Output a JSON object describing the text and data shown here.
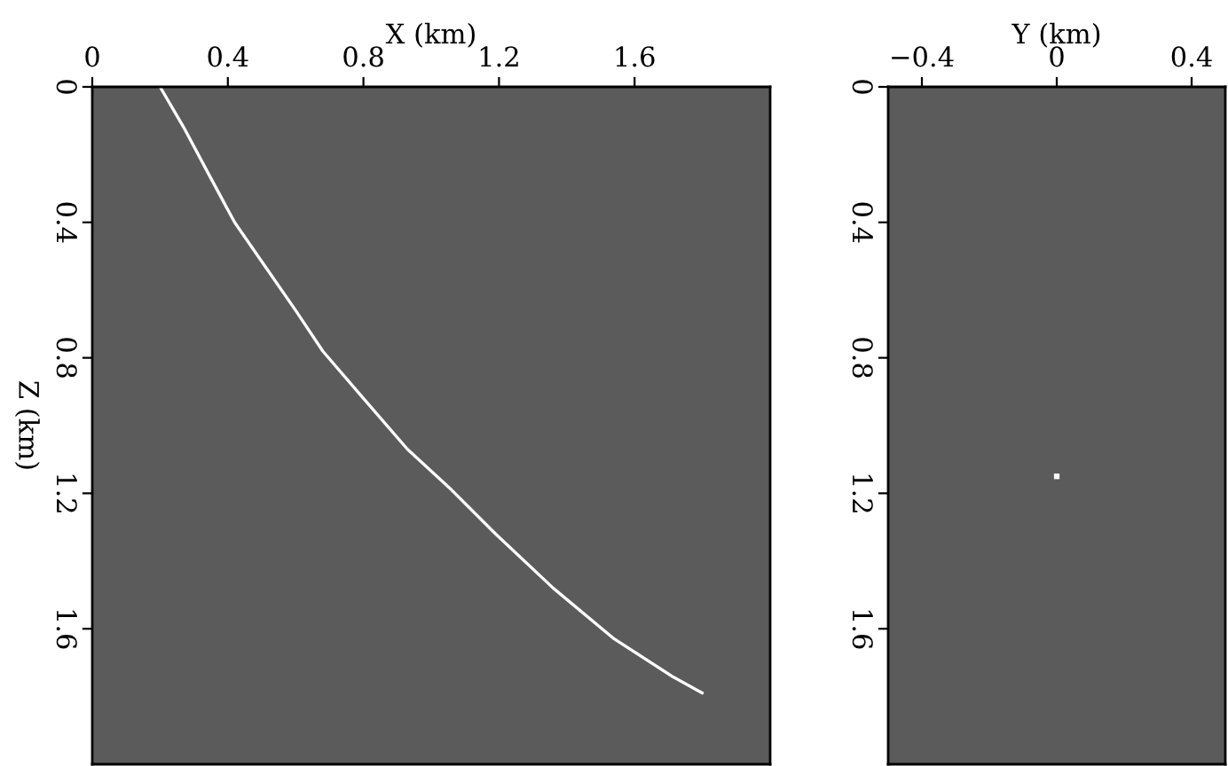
{
  "chart_data": [
    {
      "type": "line",
      "xlabel": "X (km)",
      "ylabel": "Z (km)",
      "color": "#ffffff",
      "x": [
        0.2,
        0.27,
        0.35,
        0.42,
        0.51,
        0.6,
        0.68,
        0.8,
        0.93,
        1.06,
        1.19,
        1.36,
        1.54,
        1.71,
        1.8
      ],
      "values": [
        0,
        0.12,
        0.27,
        0.4,
        0.53,
        0.66,
        0.78,
        0.92,
        1.07,
        1.19,
        1.32,
        1.48,
        1.63,
        1.74,
        1.79
      ],
      "xlim": [
        0,
        2.0
      ],
      "xticks": [
        0,
        0.4,
        0.8,
        1.2,
        1.6
      ],
      "ylim": [
        2.0,
        0
      ],
      "yticks": [
        0,
        0.4,
        0.8,
        1.2,
        1.6
      ]
    },
    {
      "type": "scatter",
      "xlabel": "Y (km)",
      "color": "#ffffff",
      "marker": "square",
      "x": [
        0
      ],
      "values": [
        1.15
      ],
      "xlim": [
        -0.5,
        0.5
      ],
      "xticks": [
        {
          "value": -0.4,
          "label": "−0.4"
        },
        0,
        0.4
      ],
      "ylim": [
        2.0,
        0
      ],
      "yticks": [
        0,
        0.4,
        0.8,
        1.2,
        1.6
      ]
    }
  ]
}
